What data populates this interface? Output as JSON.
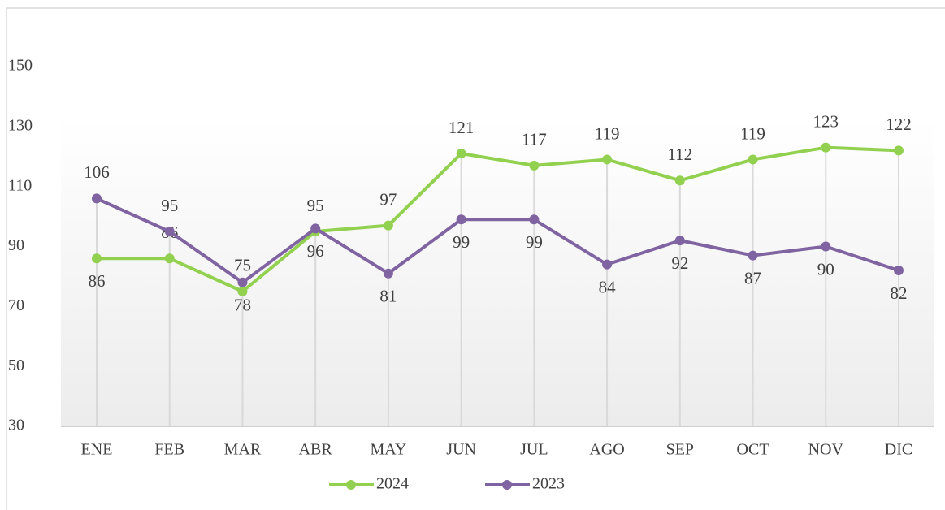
{
  "chart_data": {
    "type": "line",
    "categories": [
      "ENE",
      "FEB",
      "MAR",
      "ABR",
      "MAY",
      "JUN",
      "JUL",
      "AGO",
      "SEP",
      "OCT",
      "NOV",
      "DIC"
    ],
    "series": [
      {
        "name": "2024",
        "color": "#92d050",
        "values": [
          86,
          86,
          75,
          95,
          97,
          121,
          117,
          119,
          112,
          119,
          123,
          122
        ]
      },
      {
        "name": "2023",
        "color": "#8064a2",
        "values": [
          106,
          95,
          78,
          96,
          81,
          99,
          99,
          84,
          92,
          87,
          90,
          82
        ]
      }
    ],
    "ylim": [
      30,
      150
    ],
    "yticks": [
      30,
      50,
      70,
      90,
      110,
      130,
      150
    ],
    "grid": true,
    "legend": "bottom"
  }
}
